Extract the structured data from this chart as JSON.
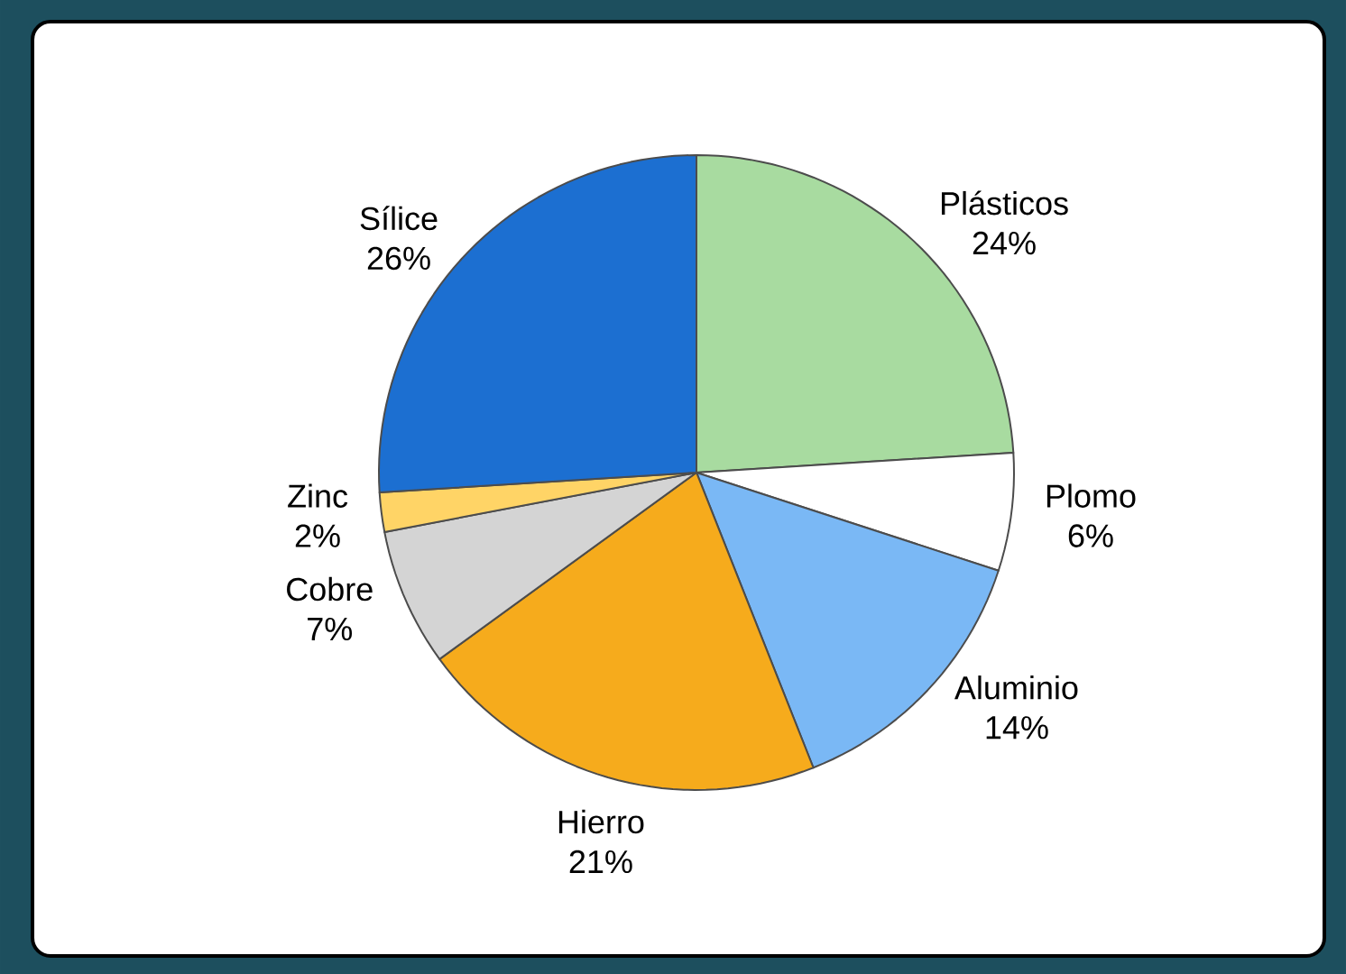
{
  "chart_data": {
    "type": "pie",
    "categories": [
      "Plásticos",
      "Plomo",
      "Aluminio",
      "Hierro",
      "Cobre",
      "Zinc",
      "Sílice"
    ],
    "values": [
      24,
      6,
      14,
      21,
      7,
      2,
      26
    ],
    "value_labels": [
      "24%",
      "6%",
      "14%",
      "21%",
      "7%",
      "2%",
      "26%"
    ],
    "colors": [
      "#a8dba0",
      "#ffffff",
      "#7ab8f5",
      "#f6ab1c",
      "#d4d4d4",
      "#ffd466",
      "#1c6fd1"
    ]
  }
}
